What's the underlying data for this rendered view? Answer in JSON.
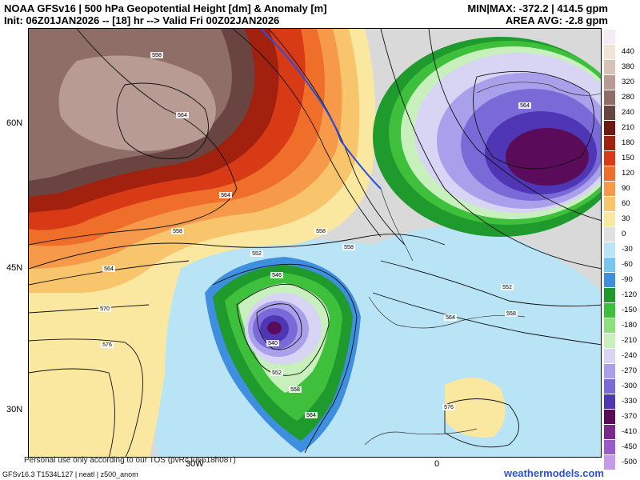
{
  "header": {
    "line1": "NOAA GFSv16 | 500 hPa Geopotential Height [dm] & Anomaly [m]",
    "line2": "Init: 06Z01JAN2026 -- [18] hr --> Valid Fri 00Z02JAN2026",
    "minmax": "MIN|MAX: -372.2 | 414.5 gpm",
    "area_avg": "AREA AVG: -2.8 gpm"
  },
  "axes": {
    "lat_labels": [
      "60N",
      "45N",
      "30N"
    ],
    "lon_labels": [
      "30W",
      "0"
    ]
  },
  "legend": {
    "items": [
      {
        "label": "",
        "color": "#f4ecf2"
      },
      {
        "label": "440",
        "color": "#efe4d6"
      },
      {
        "label": "380",
        "color": "#d8c2b6"
      },
      {
        "label": "320",
        "color": "#b89c94"
      },
      {
        "label": "280",
        "color": "#8f6e68"
      },
      {
        "label": "240",
        "color": "#6a4440"
      },
      {
        "label": "210",
        "color": "#6e1a12"
      },
      {
        "label": "180",
        "color": "#a2200e"
      },
      {
        "label": "150",
        "color": "#d83a16"
      },
      {
        "label": "120",
        "color": "#ee6e2a"
      },
      {
        "label": "90",
        "color": "#f69a4a"
      },
      {
        "label": "60",
        "color": "#f8c46c"
      },
      {
        "label": "30",
        "color": "#fbe8a0"
      },
      {
        "label": "0",
        "color": "#e0e0e0"
      },
      {
        "label": "-30",
        "color": "#b8e4f6"
      },
      {
        "label": "-60",
        "color": "#78c6ee"
      },
      {
        "label": "-90",
        "color": "#3f8fe0"
      },
      {
        "label": "-120",
        "color": "#1f9a2c"
      },
      {
        "label": "-150",
        "color": "#3fc03c"
      },
      {
        "label": "-180",
        "color": "#8ee07e"
      },
      {
        "label": "-210",
        "color": "#c8f0bc"
      },
      {
        "label": "-240",
        "color": "#d8d4f4"
      },
      {
        "label": "-270",
        "color": "#a8a0ea"
      },
      {
        "label": "-300",
        "color": "#7a6ad8"
      },
      {
        "label": "-330",
        "color": "#4e36b4"
      },
      {
        "label": "-370",
        "color": "#5a0c5a"
      },
      {
        "label": "-410",
        "color": "#7a2a8a"
      },
      {
        "label": "-450",
        "color": "#9a5ac8"
      },
      {
        "label": "-500",
        "color": "#c69ae8"
      }
    ]
  },
  "contour_labels": [
    {
      "text": "558"
    },
    {
      "text": "564"
    },
    {
      "text": "564"
    },
    {
      "text": "558"
    },
    {
      "text": "558"
    },
    {
      "text": "564"
    },
    {
      "text": "570"
    },
    {
      "text": "576"
    },
    {
      "text": "552"
    },
    {
      "text": "546"
    },
    {
      "text": "540"
    },
    {
      "text": "552"
    },
    {
      "text": "558"
    },
    {
      "text": "564"
    },
    {
      "text": "558"
    },
    {
      "text": "564"
    },
    {
      "text": "576"
    },
    {
      "text": "564"
    },
    {
      "text": "552"
    },
    {
      "text": "558"
    }
  ],
  "tos": "Personal use only according to our TOS (pvRcJu6618h08T)",
  "footer_left": "GFSv16.3 T1534L127 | neatl | z500_anom",
  "footer_right": "weathermodels.com"
}
